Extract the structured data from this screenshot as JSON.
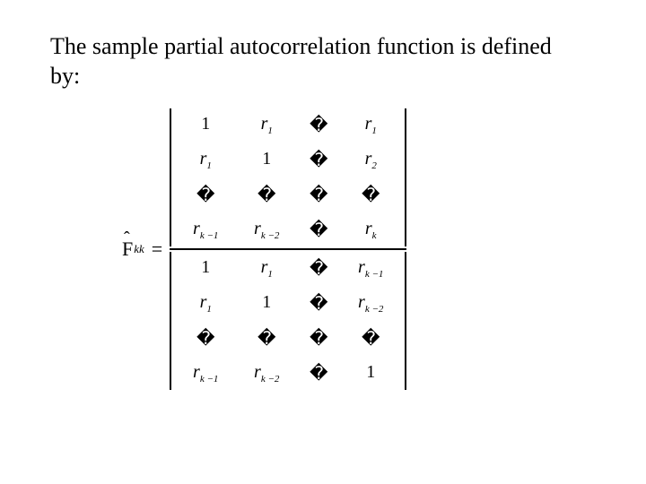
{
  "intro_line1": "The sample partial autocorrelation function is defined",
  "intro_line2": "by:",
  "lhs_symbol": "F",
  "lhs_hat": "ˆ",
  "lhs_sub": "kk",
  "equals": "=",
  "placeholder_glyph": "�",
  "numerator": {
    "r11": "1",
    "r12": "r|1",
    "r13": "PH",
    "r14": "r|1",
    "r21": "r|1",
    "r22": "1",
    "r23": "PH",
    "r24": "r|2",
    "r31": "PH",
    "r32": "PH",
    "r33": "PH",
    "r34": "PH",
    "r41": "r|k −1",
    "r42": "r|k −2",
    "r43": "PH",
    "r44": "r|k"
  },
  "denominator": {
    "r11": "1",
    "r12": "r|1",
    "r13": "PH",
    "r14": "r|k −1",
    "r21": "r|1",
    "r22": "1",
    "r23": "PH",
    "r24": "r|k −2",
    "r31": "PH",
    "r32": "PH",
    "r33": "PH",
    "r34": "PH",
    "r41": "r|k −1",
    "r42": "r|k −2",
    "r43": "PH",
    "r44": "1"
  }
}
